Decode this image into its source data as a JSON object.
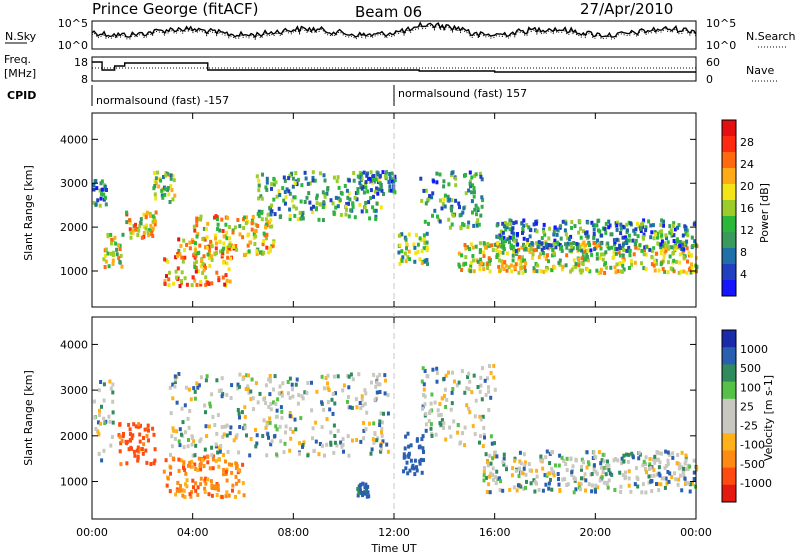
{
  "header": {
    "station": "Prince George (fitACF)",
    "beam": "Beam 06",
    "date": "27/Apr/2010"
  },
  "noise_panel": {
    "left_label": "N.Sky",
    "right_label": "N.Search",
    "left_ticks": [
      "10^5",
      "10^0"
    ],
    "right_ticks": [
      "10^5",
      "10^0"
    ]
  },
  "freq_panel": {
    "left_label_1": "Freq.",
    "left_label_2": "[MHz]",
    "right_label": "Nave",
    "left_ticks": [
      "18",
      "8"
    ],
    "right_ticks": [
      "60",
      "0"
    ]
  },
  "cpid": {
    "label": "CPID",
    "segments": [
      {
        "start_hour": 0.0,
        "end_hour": 12.0,
        "text": "normalsound (fast) -157"
      },
      {
        "start_hour": 12.0,
        "end_hour": 24.0,
        "text": "normalsound (fast) 157"
      }
    ]
  },
  "chart_data": [
    {
      "type": "heatmap",
      "name": "power",
      "ylabel": "Slant Range [km]",
      "xlabel": "Time UT",
      "xlim_hours": [
        0,
        24
      ],
      "ylim_km": [
        180,
        4600
      ],
      "y_ticks": [
        1000,
        2000,
        3000,
        4000
      ],
      "colorbar": {
        "title": "Power [dB]",
        "ticks": [
          "4",
          "8",
          "12",
          "16",
          "20",
          "24",
          "28"
        ],
        "colors": [
          "#1515ff",
          "#2040c0",
          "#1f6fa8",
          "#3a9a5c",
          "#2bb83a",
          "#9ccc2a",
          "#f2e416",
          "#ffab16",
          "#ff6a10",
          "#ff2a10",
          "#e40f0f"
        ]
      },
      "echo_regions": [
        {
          "t0": 0.0,
          "t1": 0.6,
          "r0": 2500,
          "r1": 3100,
          "level": 0.3
        },
        {
          "t0": 0.4,
          "t1": 1.2,
          "r0": 1100,
          "r1": 1900,
          "level": 0.55
        },
        {
          "t0": 1.3,
          "t1": 2.5,
          "r0": 1800,
          "r1": 2400,
          "level": 0.6
        },
        {
          "t0": 2.4,
          "t1": 3.3,
          "r0": 2600,
          "r1": 3300,
          "level": 0.45
        },
        {
          "t0": 2.8,
          "t1": 5.6,
          "r0": 700,
          "r1": 1800,
          "level": 0.7
        },
        {
          "t0": 4.0,
          "t1": 7.2,
          "r0": 1400,
          "r1": 2300,
          "level": 0.6
        },
        {
          "t0": 6.5,
          "t1": 11.5,
          "r0": 2200,
          "r1": 3300,
          "level": 0.35
        },
        {
          "t0": 10.5,
          "t1": 12.0,
          "r0": 2800,
          "r1": 3300,
          "level": 0.3
        },
        {
          "t0": 12.1,
          "t1": 13.3,
          "r0": 1200,
          "r1": 1900,
          "level": 0.45
        },
        {
          "t0": 13.0,
          "t1": 15.5,
          "r0": 2000,
          "r1": 3300,
          "level": 0.3
        },
        {
          "t0": 14.5,
          "t1": 24.0,
          "r0": 1000,
          "r1": 1700,
          "level": 0.55
        },
        {
          "t0": 16.0,
          "t1": 24.0,
          "r0": 1500,
          "r1": 2200,
          "level": 0.3
        }
      ]
    },
    {
      "type": "heatmap",
      "name": "velocity",
      "ylabel": "Slant Range [km]",
      "xlabel": "Time UT",
      "xlim_hours": [
        0,
        24
      ],
      "ylim_km": [
        180,
        4600
      ],
      "y_ticks": [
        1000,
        2000,
        3000,
        4000
      ],
      "colorbar": {
        "title": "Velocity [m s-1]",
        "ticks": [
          "1000",
          "500",
          "100",
          "25",
          "-25",
          "-100",
          "-500",
          "-1000"
        ],
        "colors": [
          "#1a2aa8",
          "#2a5fb0",
          "#2f8a5c",
          "#55c247",
          "#c8c8c0",
          "#c8c8c0",
          "#ffb11a",
          "#ff8a12",
          "#ff4a10",
          "#e41a10"
        ]
      },
      "echo_regions": [
        {
          "t0": 0.0,
          "t1": 0.8,
          "r0": 1500,
          "r1": 3300,
          "vel": 0
        },
        {
          "t0": 1.0,
          "t1": 2.5,
          "r0": 1400,
          "r1": 2300,
          "vel": -600
        },
        {
          "t0": 2.8,
          "t1": 6.0,
          "r0": 700,
          "r1": 1600,
          "vel": -400
        },
        {
          "t0": 3.0,
          "t1": 11.8,
          "r0": 1600,
          "r1": 3400,
          "vel": 0
        },
        {
          "t0": 10.5,
          "t1": 11.1,
          "r0": 700,
          "r1": 1000,
          "vel": 200
        },
        {
          "t0": 12.3,
          "t1": 13.2,
          "r0": 1200,
          "r1": 2100,
          "vel": 300
        },
        {
          "t0": 13.0,
          "t1": 16.0,
          "r0": 1800,
          "r1": 3600,
          "vel": 0
        },
        {
          "t0": 15.5,
          "t1": 24.0,
          "r0": 800,
          "r1": 1700,
          "vel": 0
        }
      ]
    }
  ],
  "time_axis": {
    "ticks": [
      "00:00",
      "04:00",
      "08:00",
      "12:00",
      "16:00",
      "20:00",
      "00:00"
    ]
  }
}
